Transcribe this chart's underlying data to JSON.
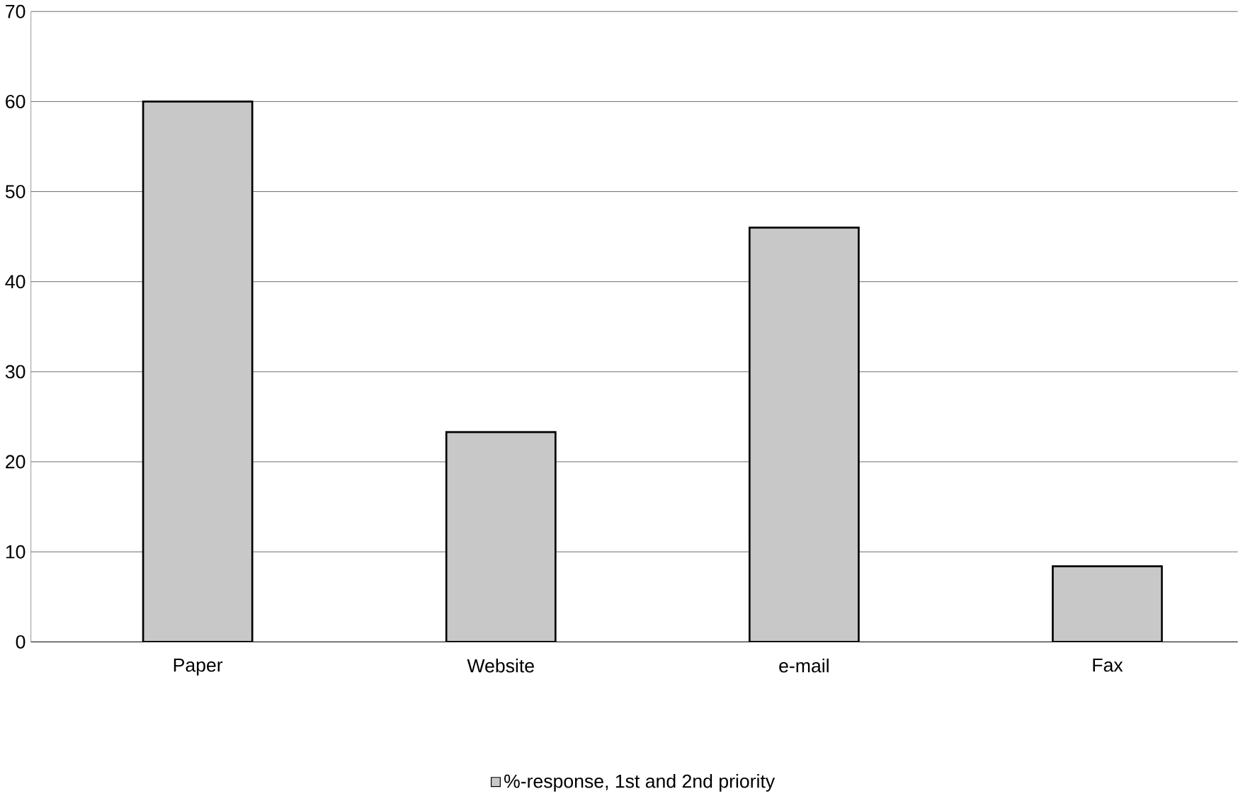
{
  "chart_data": {
    "type": "bar",
    "categories": [
      "Paper",
      "Website",
      "e-mail",
      "Fax"
    ],
    "series": [
      {
        "name": "%-response, 1st and 2nd priority",
        "color": "#c8c8c8",
        "values": [
          60,
          23.3,
          46,
          8.4
        ]
      }
    ],
    "ylim": [
      0,
      70
    ],
    "yticks": [
      0,
      10,
      20,
      30,
      40,
      50,
      60,
      70
    ],
    "grid": "y",
    "legend": "bottom"
  }
}
